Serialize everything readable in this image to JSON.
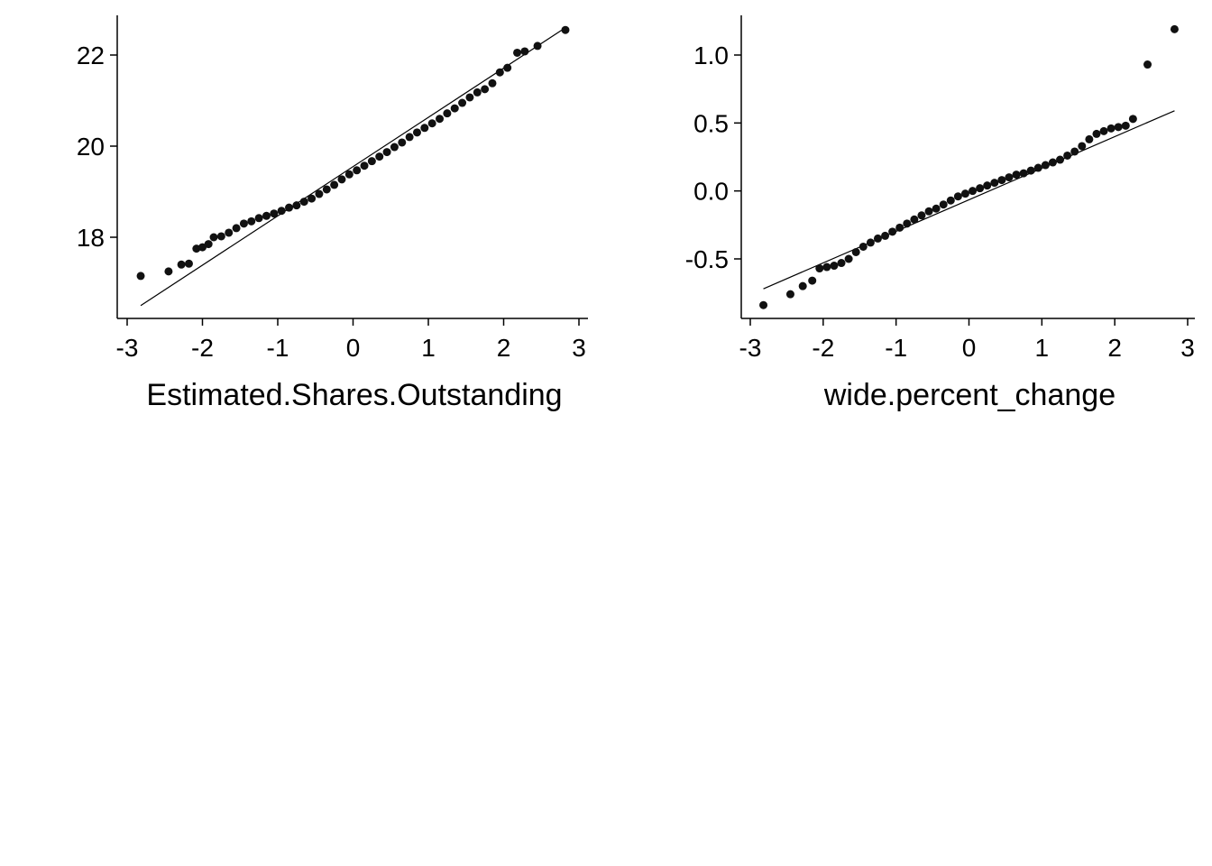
{
  "chart_data": [
    {
      "type": "scatter",
      "subtype": "qq-plot",
      "title": "",
      "xlabel": "Estimated.Shares.Outstanding",
      "ylabel": "",
      "xlim": [
        -3,
        3
      ],
      "ylim": [
        16.3,
        22.9
      ],
      "x_ticks": [
        -3,
        -2,
        -1,
        0,
        1,
        2,
        3
      ],
      "x_tick_labels": [
        "-3",
        "-2",
        "-1",
        "0",
        "1",
        "2",
        "3"
      ],
      "y_ticks": [
        18,
        20,
        22
      ],
      "y_tick_labels": [
        "18",
        "20",
        "22"
      ],
      "reference_line": {
        "from": [
          -2.82,
          16.5
        ],
        "to": [
          2.82,
          22.6
        ]
      },
      "points": [
        [
          -2.82,
          17.15
        ],
        [
          -2.45,
          17.25
        ],
        [
          -2.28,
          17.4
        ],
        [
          -2.18,
          17.42
        ],
        [
          -2.08,
          17.75
        ],
        [
          -2.0,
          17.78
        ],
        [
          -1.92,
          17.85
        ],
        [
          -1.85,
          18.0
        ],
        [
          -1.75,
          18.02
        ],
        [
          -1.65,
          18.1
        ],
        [
          -1.55,
          18.2
        ],
        [
          -1.45,
          18.3
        ],
        [
          -1.35,
          18.35
        ],
        [
          -1.25,
          18.42
        ],
        [
          -1.15,
          18.47
        ],
        [
          -1.05,
          18.52
        ],
        [
          -0.95,
          18.58
        ],
        [
          -0.85,
          18.65
        ],
        [
          -0.75,
          18.7
        ],
        [
          -0.65,
          18.78
        ],
        [
          -0.55,
          18.85
        ],
        [
          -0.45,
          18.95
        ],
        [
          -0.35,
          19.05
        ],
        [
          -0.25,
          19.15
        ],
        [
          -0.15,
          19.27
        ],
        [
          -0.05,
          19.38
        ],
        [
          0.05,
          19.47
        ],
        [
          0.15,
          19.57
        ],
        [
          0.25,
          19.67
        ],
        [
          0.35,
          19.77
        ],
        [
          0.45,
          19.87
        ],
        [
          0.55,
          19.98
        ],
        [
          0.65,
          20.08
        ],
        [
          0.75,
          20.2
        ],
        [
          0.85,
          20.3
        ],
        [
          0.95,
          20.4
        ],
        [
          1.05,
          20.5
        ],
        [
          1.15,
          20.6
        ],
        [
          1.25,
          20.72
        ],
        [
          1.35,
          20.83
        ],
        [
          1.45,
          20.95
        ],
        [
          1.55,
          21.07
        ],
        [
          1.65,
          21.18
        ],
        [
          1.75,
          21.25
        ],
        [
          1.85,
          21.38
        ],
        [
          1.95,
          21.62
        ],
        [
          2.05,
          21.72
        ],
        [
          2.18,
          22.05
        ],
        [
          2.28,
          22.08
        ],
        [
          2.45,
          22.2
        ],
        [
          2.82,
          22.55
        ]
      ]
    },
    {
      "type": "scatter",
      "subtype": "qq-plot",
      "title": "",
      "xlabel": "wide.percent_change",
      "ylabel": "",
      "xlim": [
        -3,
        3
      ],
      "ylim": [
        -0.95,
        1.3
      ],
      "x_ticks": [
        -3,
        -2,
        -1,
        0,
        1,
        2,
        3
      ],
      "x_tick_labels": [
        "-3",
        "-2",
        "-1",
        "0",
        "1",
        "2",
        "3"
      ],
      "y_ticks": [
        -0.5,
        0.0,
        0.5,
        1.0
      ],
      "y_tick_labels": [
        "-0.5",
        "0.0",
        "0.5",
        "1.0"
      ],
      "reference_line": {
        "from": [
          -2.82,
          -0.72
        ],
        "to": [
          2.82,
          0.59
        ]
      },
      "points": [
        [
          -2.82,
          -0.84
        ],
        [
          -2.45,
          -0.76
        ],
        [
          -2.28,
          -0.7
        ],
        [
          -2.15,
          -0.66
        ],
        [
          -2.05,
          -0.57
        ],
        [
          -1.95,
          -0.56
        ],
        [
          -1.85,
          -0.55
        ],
        [
          -1.75,
          -0.53
        ],
        [
          -1.65,
          -0.5
        ],
        [
          -1.55,
          -0.45
        ],
        [
          -1.45,
          -0.41
        ],
        [
          -1.35,
          -0.38
        ],
        [
          -1.25,
          -0.35
        ],
        [
          -1.15,
          -0.33
        ],
        [
          -1.05,
          -0.3
        ],
        [
          -0.95,
          -0.27
        ],
        [
          -0.85,
          -0.24
        ],
        [
          -0.75,
          -0.21
        ],
        [
          -0.65,
          -0.18
        ],
        [
          -0.55,
          -0.15
        ],
        [
          -0.45,
          -0.13
        ],
        [
          -0.35,
          -0.1
        ],
        [
          -0.25,
          -0.07
        ],
        [
          -0.15,
          -0.04
        ],
        [
          -0.05,
          -0.02
        ],
        [
          0.05,
          0.0
        ],
        [
          0.15,
          0.02
        ],
        [
          0.25,
          0.04
        ],
        [
          0.35,
          0.06
        ],
        [
          0.45,
          0.08
        ],
        [
          0.55,
          0.1
        ],
        [
          0.65,
          0.12
        ],
        [
          0.75,
          0.13
        ],
        [
          0.85,
          0.15
        ],
        [
          0.95,
          0.17
        ],
        [
          1.05,
          0.19
        ],
        [
          1.15,
          0.21
        ],
        [
          1.25,
          0.23
        ],
        [
          1.35,
          0.26
        ],
        [
          1.45,
          0.29
        ],
        [
          1.55,
          0.33
        ],
        [
          1.65,
          0.38
        ],
        [
          1.75,
          0.42
        ],
        [
          1.85,
          0.44
        ],
        [
          1.95,
          0.46
        ],
        [
          2.05,
          0.47
        ],
        [
          2.15,
          0.48
        ],
        [
          2.25,
          0.53
        ],
        [
          2.45,
          0.93
        ],
        [
          2.82,
          1.19
        ]
      ]
    }
  ]
}
